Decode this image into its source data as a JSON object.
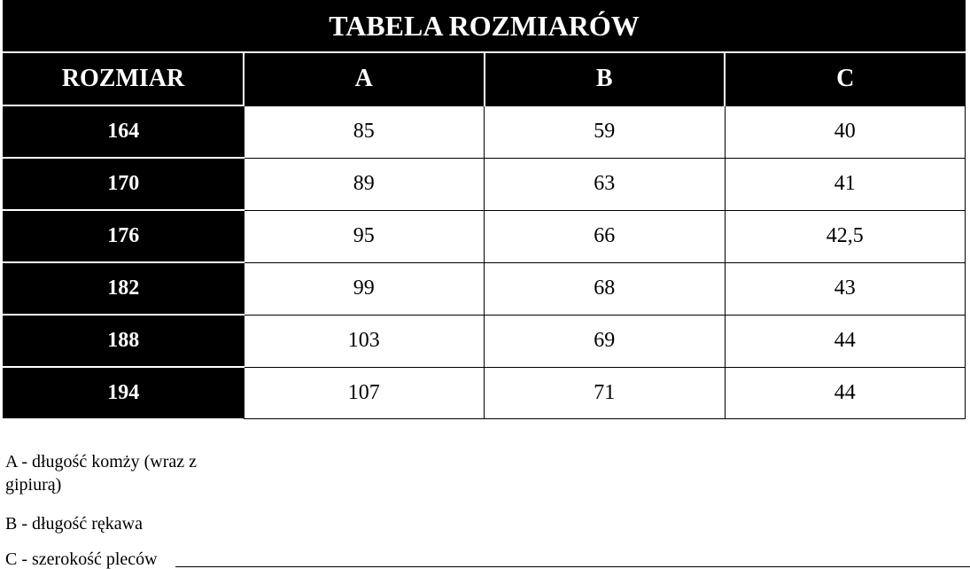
{
  "table": {
    "title": "TABELA ROZMIARÓW",
    "header": [
      "ROZMIAR",
      "A",
      "B",
      "C"
    ],
    "rows": [
      [
        "164",
        "85",
        "59",
        "40"
      ],
      [
        "170",
        "89",
        "63",
        "41"
      ],
      [
        "176",
        "95",
        "66",
        "42,5"
      ],
      [
        "182",
        "99",
        "68",
        "43"
      ],
      [
        "188",
        "103",
        "69",
        "44"
      ],
      [
        "194",
        "107",
        "71",
        "44"
      ]
    ]
  },
  "notes": [
    "A - długość komży (wraz z gipiurą)",
    "B - długość rękawa",
    "C - szerokość pleców"
  ]
}
